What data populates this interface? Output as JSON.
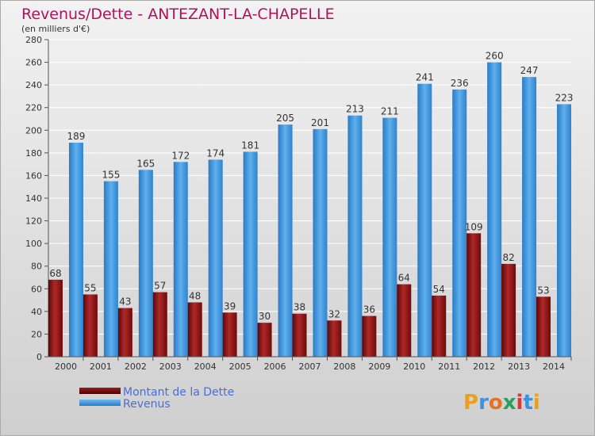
{
  "chart_data": {
    "type": "bar",
    "title": "Revenus/Dette - ANTEZANT-LA-CHAPELLE",
    "subtitle": "(en milliers d'€)",
    "xlabel": "",
    "ylabel": "",
    "ylim": [
      0,
      280
    ],
    "yticks": [
      0,
      20,
      40,
      60,
      80,
      100,
      120,
      140,
      160,
      180,
      200,
      220,
      240,
      260,
      280
    ],
    "grid": true,
    "legend_position": "bottom-left",
    "categories": [
      "2000",
      "2001",
      "2002",
      "2003",
      "2004",
      "2005",
      "2006",
      "2007",
      "2008",
      "2009",
      "2010",
      "2011",
      "2012",
      "2013",
      "2014"
    ],
    "series": [
      {
        "name": "Montant de la Dette",
        "color": "#8b0f0f",
        "values": [
          68,
          55,
          43,
          57,
          48,
          39,
          30,
          38,
          32,
          36,
          64,
          54,
          109,
          82,
          53
        ]
      },
      {
        "name": "Revenus",
        "color": "#3a93dc",
        "values": [
          189,
          155,
          165,
          172,
          174,
          181,
          205,
          201,
          213,
          211,
          241,
          236,
          260,
          247,
          223
        ]
      }
    ]
  },
  "brand": {
    "logo_text": "Proxiti"
  },
  "colors": {
    "title": "#b0125a",
    "tick_text": "#333333",
    "grid": "#ffffff",
    "legend_text": "#4a6ed6",
    "border": "#aaaaaa"
  }
}
